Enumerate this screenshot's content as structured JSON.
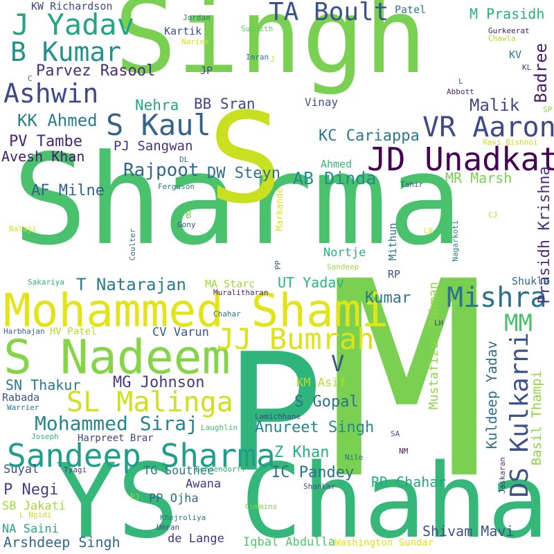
{
  "words": [
    {
      "text": "Sharma",
      "color": "#4ac16d"
    },
    {
      "text": "Singh",
      "color": "#7ad151"
    },
    {
      "text": "M",
      "color": "#7ad151"
    },
    {
      "text": "P",
      "color": "#2fb47c"
    },
    {
      "text": "S",
      "color": "#c8e020"
    },
    {
      "text": "YS Chahal",
      "color": "#35b779"
    },
    {
      "text": "Mohammed Shami",
      "color": "#e3e418"
    },
    {
      "text": "S Nadeem",
      "color": "#86d549"
    },
    {
      "text": "Sandeep Sharma",
      "color": "#1f9e89"
    },
    {
      "text": "JD Unadkat",
      "color": "#440154"
    },
    {
      "text": "VR Aaron",
      "color": "#3e4989"
    },
    {
      "text": "Mishra",
      "color": "#2c728e"
    },
    {
      "text": "SL Malinga",
      "color": "#d0e11c"
    },
    {
      "text": "JJ Bumrah",
      "color": "#dde318"
    },
    {
      "text": "DS Kulkarni",
      "color": "#3b528b"
    },
    {
      "text": "MM",
      "color": "#4ac16d"
    },
    {
      "text": "S Kaul",
      "color": "#33638d"
    },
    {
      "text": "B Kumar",
      "color": "#21918c"
    },
    {
      "text": "J Yadav",
      "color": "#21a585"
    },
    {
      "text": "TA Boult",
      "color": "#3b528b"
    },
    {
      "text": "Ashwin",
      "color": "#3e4989"
    },
    {
      "text": "Mohammed Siraj",
      "color": "#25858e"
    },
    {
      "text": "Parvez Rasool",
      "color": "#472d7b"
    },
    {
      "text": "KK Ahmed",
      "color": "#287d8e"
    },
    {
      "text": "PV Tambe",
      "color": "#482576"
    },
    {
      "text": "PJ Sangwan",
      "color": "#46327e"
    },
    {
      "text": "Avesh Khan",
      "color": "#481a6c"
    },
    {
      "text": "Rajpoot",
      "color": "#31688e"
    },
    {
      "text": "DW Steyn",
      "color": "#2d708e"
    },
    {
      "text": "AB Dinda",
      "color": "#228d8d"
    },
    {
      "text": "AF Milne",
      "color": "#33638d"
    },
    {
      "text": "KC Cariappa",
      "color": "#2a788e"
    },
    {
      "text": "Malik",
      "color": "#3e4989"
    },
    {
      "text": "Nehra",
      "color": "#21a685"
    },
    {
      "text": "BB Sran",
      "color": "#3f4788"
    },
    {
      "text": "Badree",
      "color": "#481b6d"
    },
    {
      "text": "M Prasidh",
      "color": "#29af7f"
    },
    {
      "text": "MR Marsh",
      "color": "#7ad151"
    },
    {
      "text": "Prasidh Krishna",
      "color": "#472f7d"
    },
    {
      "text": "T Natarajan",
      "color": "#287c8e"
    },
    {
      "text": "UT Yadav",
      "color": "#2eb37c"
    },
    {
      "text": "Kumar",
      "color": "#2a778e"
    },
    {
      "text": "Mustafizur Rahman",
      "color": "#8fd744"
    },
    {
      "text": "Kuldeep Yadav",
      "color": "#2d708e"
    },
    {
      "text": "Basil Thampi",
      "color": "#8fd744"
    },
    {
      "text": "MG Johnson",
      "color": "#443a83"
    },
    {
      "text": "SN Thakur",
      "color": "#2a788e"
    },
    {
      "text": "S Gopal",
      "color": "#2c728e"
    },
    {
      "text": "Anureet Singh",
      "color": "#24878e"
    },
    {
      "text": "KM Asif",
      "color": "#b5de2b"
    },
    {
      "text": "Z Khan",
      "color": "#26ad81"
    },
    {
      "text": "IC Pandey",
      "color": "#2d708e"
    },
    {
      "text": "RD Chahar",
      "color": "#25ab82"
    },
    {
      "text": "Shivam Mavi",
      "color": "#3b528b"
    },
    {
      "text": "P Negi",
      "color": "#433e85"
    },
    {
      "text": "Arshdeep Singh",
      "color": "#31688e"
    },
    {
      "text": "CV Varun",
      "color": "#38588c"
    },
    {
      "text": "TG Southee",
      "color": "#2a788e"
    },
    {
      "text": "PP Ojha",
      "color": "#30698e"
    },
    {
      "text": "Awana",
      "color": "#443983"
    },
    {
      "text": "de Lange",
      "color": "#463480"
    },
    {
      "text": "Iqbal Abdulla",
      "color": "#52c569"
    },
    {
      "text": "Washington Sundar",
      "color": "#dde318"
    },
    {
      "text": "NA Saini",
      "color": "#22a785"
    },
    {
      "text": "SB Jakati",
      "color": "#a5db36"
    },
    {
      "text": "Suyal",
      "color": "#3b528b"
    },
    {
      "text": "Rabada",
      "color": "#3b528b"
    },
    {
      "text": "Harpreet Brar",
      "color": "#414487"
    },
    {
      "text": "Vinay",
      "color": "#3b528b"
    },
    {
      "text": "Ahmed",
      "color": "#35b779"
    },
    {
      "text": "Nortje",
      "color": "#29af7f"
    },
    {
      "text": "MA Starc",
      "color": "#a0da39"
    },
    {
      "text": "Shukla",
      "color": "#31688e"
    },
    {
      "text": "HV Patel",
      "color": "#b5de2b"
    },
    {
      "text": "V",
      "color": "#3b528b"
    },
    {
      "text": "KW Richardson",
      "color": "#3e4989"
    },
    {
      "text": "Patel",
      "color": "#2a788e"
    },
    {
      "text": "Kartik",
      "color": "#3e4989"
    },
    {
      "text": "Jordan",
      "color": "#2c728e"
    },
    {
      "text": "Suchith",
      "color": "#5ec962"
    },
    {
      "text": "Narine",
      "color": "#d8e219"
    },
    {
      "text": "Imran",
      "color": "#2a788e"
    },
    {
      "text": "J",
      "color": "#d8e219"
    },
    {
      "text": "JP",
      "color": "#3e4989"
    },
    {
      "text": "C",
      "color": "#2c728e"
    },
    {
      "text": "Gurkeerat",
      "color": "#481769"
    },
    {
      "text": "Chawla",
      "color": "#b5de2b"
    },
    {
      "text": "KV",
      "color": "#2a788e"
    },
    {
      "text": "KL",
      "color": "#443983"
    },
    {
      "text": "L",
      "color": "#31688e"
    },
    {
      "text": "Abbott",
      "color": "#481f70"
    },
    {
      "text": "SP",
      "color": "#8fd744"
    },
    {
      "text": "Ravi Bishnoi",
      "color": "#d0e11c"
    },
    {
      "text": "DL",
      "color": "#2c728e"
    },
    {
      "text": "Tahir",
      "color": "#3b528b"
    },
    {
      "text": "Ferguson",
      "color": "#2a788e"
    },
    {
      "text": "Markande",
      "color": "#e3e418"
    },
    {
      "text": "B",
      "color": "#7ad151"
    },
    {
      "text": "Gony",
      "color": "#3e4989"
    },
    {
      "text": "Balaji",
      "color": "#d8e219"
    },
    {
      "text": "Coulter",
      "color": "#31688e"
    },
    {
      "text": "Mithun",
      "color": "#2c728e"
    },
    {
      "text": "LR",
      "color": "#e3e418"
    },
    {
      "text": "Nagarkoti",
      "color": "#2a788e"
    },
    {
      "text": "CJ",
      "color": "#b5de2b"
    },
    {
      "text": "PP",
      "color": "#3b528b"
    },
    {
      "text": "RP",
      "color": "#3b528b"
    },
    {
      "text": "Sandeep",
      "color": "#a0da39"
    },
    {
      "text": "Sakariya",
      "color": "#2eb37c"
    },
    {
      "text": "Muralitharan",
      "color": "#482576"
    },
    {
      "text": "Chahar",
      "color": "#2c728e"
    },
    {
      "text": "LH",
      "color": "#3e4989"
    },
    {
      "text": "Harbhajan",
      "color": "#33638d"
    },
    {
      "text": "Lamichhane",
      "color": "#3e4989"
    },
    {
      "text": "Warrier",
      "color": "#2a788e"
    },
    {
      "text": "Laughlin",
      "color": "#3fbc73"
    },
    {
      "text": "SA",
      "color": "#3b528b"
    },
    {
      "text": "Joseph",
      "color": "#2eb37c"
    },
    {
      "text": "NM",
      "color": "#481769"
    },
    {
      "text": "Nile",
      "color": "#2c728e"
    },
    {
      "text": "Jaskaran",
      "color": "#472d7b"
    },
    {
      "text": "Tyagi",
      "color": "#443983"
    },
    {
      "text": "Behrendorff",
      "color": "#2eb37c"
    },
    {
      "text": "Shankar",
      "color": "#3b528b"
    },
    {
      "text": "PJ",
      "color": "#a0da39"
    },
    {
      "text": "L Ngidi",
      "color": "#c8e020"
    },
    {
      "text": "Cummins",
      "color": "#7ad151"
    },
    {
      "text": "Khejroliya",
      "color": "#2c728e"
    },
    {
      "text": "Umran",
      "color": "#3e4989"
    }
  ]
}
